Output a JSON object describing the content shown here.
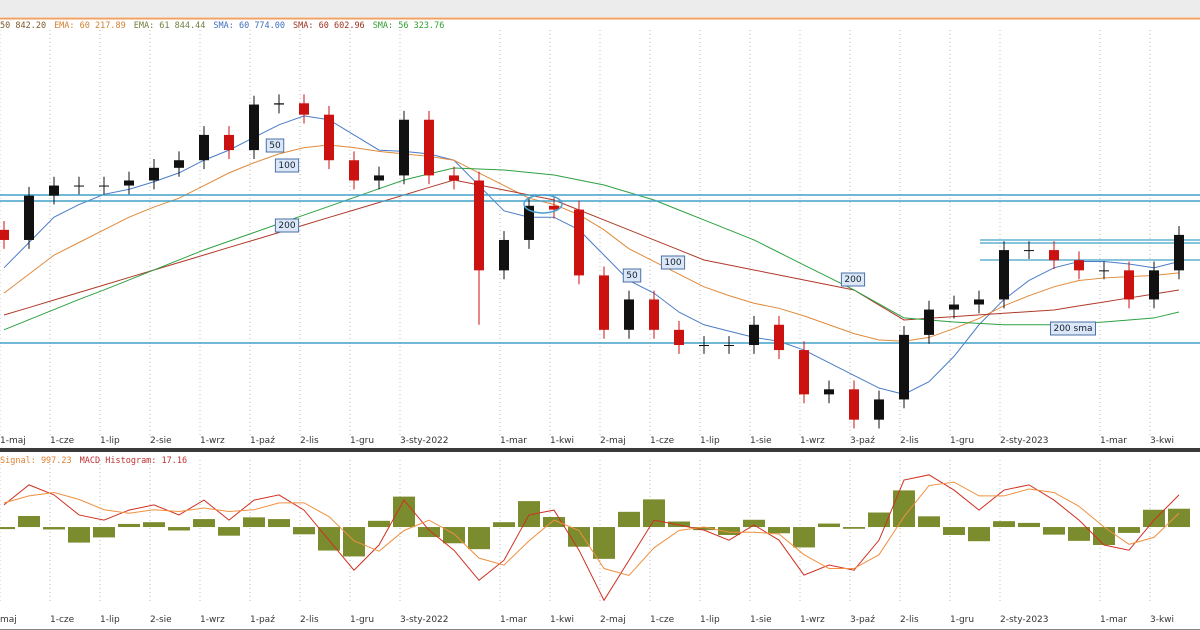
{
  "chart_data": [
    {
      "type": "candlestick",
      "header": [
        {
          "text": "50 842.20",
          "color": "#7a5a2a"
        },
        {
          "text": "EMA: 60 217.89",
          "color": "#d08030"
        },
        {
          "text": "EMA: 61 844.44",
          "color": "#708040"
        },
        {
          "text": "SMA: 60 774.00",
          "color": "#4070c0"
        },
        {
          "text": "SMA: 60 602.96",
          "color": "#a03020"
        },
        {
          "text": "SMA: 56 323.76",
          "color": "#30a030"
        }
      ],
      "categories": [
        "1-maj",
        null,
        "1-cze",
        null,
        "1-lip",
        null,
        "2-sie",
        null,
        "1-wrz",
        null,
        "1-paź",
        null,
        "2-lis",
        null,
        "1-gru",
        null,
        "3-sty-2022",
        null,
        null,
        null,
        "1-mar",
        null,
        "1-kwi",
        null,
        "2-maj",
        null,
        "1-cze",
        null,
        "1-lip",
        null,
        "1-sie",
        null,
        "1-wrz",
        null,
        "3-paź",
        null,
        "2-lis",
        null,
        "1-gru",
        null,
        "2-sty-2023",
        null,
        null,
        null,
        "1-mar",
        null,
        "3-kwi",
        null
      ],
      "open": [
        61000,
        60200,
        63700,
        64500,
        64500,
        64500,
        64900,
        65900,
        66500,
        68500,
        67300,
        70900,
        71000,
        70100,
        66500,
        64900,
        65300,
        69700,
        65300,
        64900,
        57800,
        60200,
        62900,
        62600,
        57400,
        53100,
        55500,
        53100,
        51900,
        51900,
        51900,
        53500,
        51500,
        48000,
        48400,
        46000,
        47600,
        52700,
        54700,
        55100,
        55500,
        59400,
        59400,
        58600,
        57800,
        57800,
        55500,
        57800
      ],
      "high": [
        61700,
        64400,
        65200,
        65200,
        65200,
        65600,
        66600,
        67200,
        69200,
        69200,
        71600,
        71700,
        71700,
        70800,
        67200,
        66000,
        70400,
        70400,
        66000,
        65600,
        60900,
        63600,
        63600,
        63300,
        58100,
        56200,
        56200,
        53800,
        52600,
        52600,
        54200,
        54200,
        52200,
        49100,
        49100,
        48300,
        53400,
        55400,
        55800,
        56200,
        60100,
        60100,
        60100,
        59300,
        58500,
        58500,
        58500,
        61300
      ],
      "low": [
        59500,
        59500,
        63000,
        63800,
        63800,
        63800,
        64200,
        65200,
        65800,
        66600,
        66600,
        70200,
        69400,
        65800,
        64200,
        64200,
        64600,
        64600,
        64200,
        53500,
        57100,
        59500,
        61900,
        56700,
        52400,
        52400,
        52400,
        51200,
        51200,
        51200,
        51200,
        50800,
        47300,
        47300,
        45300,
        45300,
        46900,
        52000,
        54000,
        54400,
        54800,
        58700,
        57900,
        57100,
        57100,
        54800,
        54800,
        57100
      ],
      "close": [
        60200,
        63700,
        64500,
        64500,
        64500,
        64900,
        65900,
        66500,
        68500,
        67300,
        70900,
        71000,
        70100,
        66500,
        64900,
        65300,
        69700,
        65300,
        64900,
        57800,
        60200,
        62900,
        62600,
        57400,
        53100,
        55500,
        53100,
        51900,
        51900,
        51900,
        53500,
        51500,
        48000,
        48400,
        46000,
        47600,
        52700,
        54700,
        55100,
        55500,
        59400,
        59400,
        58600,
        57800,
        57800,
        55500,
        57800,
        60600
      ],
      "up_color": "#111111",
      "down_color": "#cc1111",
      "series": [
        {
          "color": "#4a7cc8",
          "values": [
            58000,
            60000,
            62000,
            63000,
            63800,
            64200,
            64800,
            65500,
            66500,
            67300,
            68300,
            69300,
            70000,
            69700,
            68500,
            67300,
            67200,
            67000,
            66500,
            64500,
            62500,
            62000,
            62000,
            61000,
            59000,
            57000,
            56000,
            54500,
            53500,
            53000,
            52500,
            52200,
            51500,
            50500,
            49500,
            48500,
            48000,
            49000,
            51000,
            53500,
            55500,
            57000,
            58000,
            58500,
            58500,
            58300,
            58000,
            58500
          ]
        },
        {
          "color": "#e08a3a",
          "values": [
            56000,
            57500,
            59000,
            60000,
            61000,
            62000,
            62800,
            63500,
            64500,
            65500,
            66300,
            67000,
            67500,
            67700,
            67500,
            67200,
            67000,
            66800,
            66500,
            65500,
            64500,
            63500,
            63000,
            62200,
            61000,
            59500,
            58500,
            57500,
            56500,
            55800,
            55200,
            54800,
            54200,
            53500,
            52800,
            52300,
            52200,
            52500,
            53200,
            54000,
            55000,
            55800,
            56500,
            57000,
            57200,
            57300,
            57400,
            57600
          ]
        },
        {
          "color": "#b03a2a",
          "values": [
            54270,
            54860,
            55460,
            56050,
            56640,
            57240,
            57830,
            58420,
            59010,
            59610,
            60200,
            60790,
            61380,
            61980,
            62570,
            63160,
            63750,
            64350,
            64940,
            64540,
            64150,
            63750,
            63360,
            62570,
            61780,
            60990,
            60200,
            59410,
            58620,
            58220,
            57830,
            57430,
            57040,
            56640,
            56250,
            55060,
            53880,
            54010,
            54140,
            54280,
            54410,
            54540,
            54670,
            54990,
            55300,
            55620,
            55930,
            56250
          ]
        },
        {
          "color": "#2ea043",
          "values": [
            53100,
            53900,
            54700,
            55500,
            56250,
            57040,
            57830,
            58620,
            59410,
            60100,
            60790,
            61480,
            62170,
            62860,
            63550,
            64250,
            64940,
            65420,
            65890,
            65810,
            65730,
            65530,
            65330,
            64940,
            64540,
            63950,
            63360,
            62570,
            61780,
            60990,
            60200,
            59210,
            58220,
            57240,
            56250,
            55150,
            54040,
            53880,
            53720,
            53610,
            53500,
            53500,
            53500,
            53610,
            53720,
            53880,
            54040,
            54510
          ]
        }
      ],
      "levels": [
        63750,
        63280,
        52060
      ],
      "short_levels": [
        60200,
        59960,
        58620
      ],
      "level_color": "#40a0c8",
      "annotations": [
        "50",
        "100",
        "200",
        "50",
        "100",
        "200",
        "200 sma"
      ],
      "ylim": [
        44000,
        76000
      ],
      "grid": true
    },
    {
      "type": "macd",
      "header": [
        {
          "text": "Signal: 997.23",
          "color": "#e08030"
        },
        {
          "text": "MACD Histogram: 17.16",
          "color": "#c03030"
        }
      ],
      "categories": [
        "maj",
        null,
        "1-cze",
        null,
        "1-lip",
        null,
        "2-sie",
        null,
        "1-wrz",
        null,
        "1-paź",
        null,
        "2-lis",
        null,
        "1-gru",
        null,
        "3-sty-2022",
        null,
        null,
        null,
        "1-mar",
        null,
        "1-kwi",
        null,
        "2-maj",
        null,
        "1-cze",
        null,
        "1-lip",
        null,
        "1-sie",
        null,
        "1-wrz",
        null,
        "3-paź",
        null,
        "2-lis",
        null,
        "1-gru",
        null,
        "2-sty-2023",
        null,
        null,
        null,
        "1-mar",
        null,
        "3-kwi",
        null
      ],
      "histogram": {
        "color": "#7a8c2e",
        "values": [
          -60,
          320,
          -70,
          -450,
          -300,
          90,
          140,
          -100,
          230,
          -250,
          280,
          230,
          -210,
          -680,
          -850,
          180,
          880,
          -290,
          -470,
          -640,
          140,
          750,
          290,
          -570,
          -920,
          440,
          800,
          160,
          -90,
          -230,
          210,
          -180,
          -590,
          100,
          -50,
          420,
          1060,
          310,
          -230,
          -410,
          170,
          120,
          -220,
          -400,
          -520,
          -170,
          500,
          530
        ]
      },
      "series": [
        {
          "color": "#d03020",
          "values": [
            640,
            1220,
            930,
            350,
            200,
            490,
            640,
            350,
            780,
            200,
            780,
            930,
            490,
            -380,
            -1250,
            -520,
            780,
            -90,
            -670,
            -1540,
            -960,
            350,
            490,
            -670,
            -2120,
            -960,
            200,
            60,
            -90,
            -380,
            60,
            -380,
            -1390,
            -1100,
            -1250,
            -380,
            1360,
            1510,
            1070,
            490,
            1070,
            1220,
            780,
            200,
            -520,
            -670,
            200,
            930
          ]
        },
        {
          "color": "#f09040",
          "values": [
            700,
            900,
            1000,
            800,
            500,
            400,
            500,
            450,
            550,
            450,
            500,
            700,
            700,
            300,
            -400,
            -700,
            -100,
            200,
            -200,
            -900,
            -1100,
            -400,
            200,
            -100,
            -1200,
            -1400,
            -600,
            -100,
            0,
            -150,
            -150,
            -200,
            -800,
            -1200,
            -1200,
            -800,
            300,
            1200,
            1300,
            900,
            900,
            1100,
            1000,
            600,
            0,
            -500,
            -300,
            400
          ]
        }
      ],
      "ylim": [
        -2400,
        1650
      ],
      "grid": true
    }
  ]
}
